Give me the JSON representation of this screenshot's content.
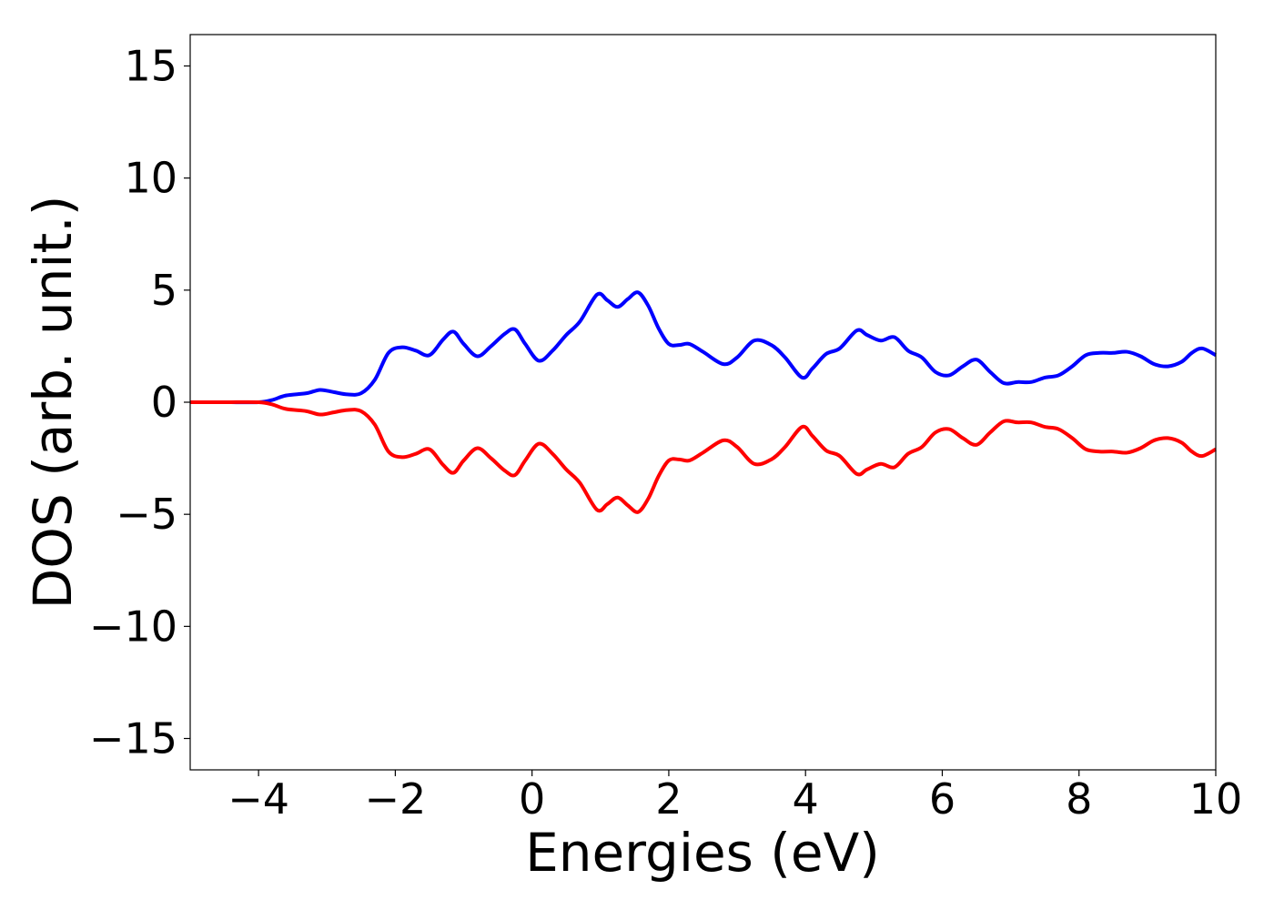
{
  "chart_data": {
    "type": "line",
    "title": "",
    "xlabel": "Energies (eV)",
    "ylabel": "DOS (arb. unit.)",
    "xlim": [
      -5,
      10
    ],
    "ylim": [
      -16.4,
      16.4
    ],
    "x_ticks": [
      -4,
      -2,
      0,
      2,
      4,
      6,
      8,
      10
    ],
    "x_tick_labels": [
      "−4",
      "−2",
      "0",
      "2",
      "4",
      "6",
      "8",
      "10"
    ],
    "y_ticks": [
      -15,
      -10,
      -5,
      0,
      5,
      10,
      15
    ],
    "y_tick_labels": [
      "−15",
      "−10",
      "−5",
      "0",
      "5",
      "10",
      "15"
    ],
    "grid": false,
    "legend": "none",
    "x": [
      -5,
      -4.5,
      -4.0,
      -3.8,
      -3.6,
      -3.3,
      -3.1,
      -2.9,
      -2.7,
      -2.5,
      -2.3,
      -2.1,
      -1.9,
      -1.7,
      -1.5,
      -1.3,
      -1.15,
      -1.0,
      -0.8,
      -0.6,
      -0.4,
      -0.25,
      -0.1,
      0.1,
      0.3,
      0.5,
      0.7,
      0.95,
      1.1,
      1.25,
      1.4,
      1.55,
      1.7,
      1.85,
      2.0,
      2.15,
      2.3,
      2.5,
      2.8,
      3.0,
      3.25,
      3.5,
      3.7,
      3.95,
      4.1,
      4.3,
      4.5,
      4.75,
      4.9,
      5.1,
      5.3,
      5.5,
      5.7,
      5.9,
      6.1,
      6.3,
      6.5,
      6.7,
      6.9,
      7.1,
      7.3,
      7.5,
      7.7,
      7.9,
      8.1,
      8.3,
      8.5,
      8.7,
      8.9,
      9.1,
      9.3,
      9.5,
      9.65,
      9.8,
      10.0
    ],
    "series": [
      {
        "color": "#0000ff",
        "values": [
          0,
          0,
          0,
          0.1,
          0.3,
          0.4,
          0.55,
          0.45,
          0.35,
          0.4,
          1.0,
          2.2,
          2.45,
          2.3,
          2.1,
          2.8,
          3.15,
          2.6,
          2.05,
          2.5,
          3.05,
          3.25,
          2.6,
          1.85,
          2.3,
          3.0,
          3.6,
          4.8,
          4.55,
          4.25,
          4.6,
          4.9,
          4.3,
          3.3,
          2.6,
          2.55,
          2.6,
          2.25,
          1.7,
          2.0,
          2.75,
          2.55,
          2.0,
          1.1,
          1.5,
          2.15,
          2.4,
          3.2,
          3.0,
          2.75,
          2.9,
          2.3,
          2.0,
          1.35,
          1.2,
          1.6,
          1.9,
          1.35,
          0.85,
          0.9,
          0.9,
          1.1,
          1.2,
          1.6,
          2.1,
          2.2,
          2.2,
          2.25,
          2.05,
          1.7,
          1.6,
          1.8,
          2.2,
          2.4,
          2.1
        ]
      },
      {
        "color": "#ff0000",
        "values": [
          0,
          0,
          0,
          -0.1,
          -0.3,
          -0.4,
          -0.55,
          -0.45,
          -0.35,
          -0.4,
          -1.0,
          -2.2,
          -2.45,
          -2.3,
          -2.1,
          -2.8,
          -3.15,
          -2.6,
          -2.05,
          -2.5,
          -3.05,
          -3.25,
          -2.6,
          -1.85,
          -2.3,
          -3.0,
          -3.6,
          -4.8,
          -4.55,
          -4.25,
          -4.6,
          -4.9,
          -4.3,
          -3.3,
          -2.6,
          -2.55,
          -2.6,
          -2.25,
          -1.7,
          -2.0,
          -2.75,
          -2.55,
          -2.0,
          -1.1,
          -1.5,
          -2.15,
          -2.4,
          -3.2,
          -3.0,
          -2.75,
          -2.9,
          -2.3,
          -2.0,
          -1.35,
          -1.2,
          -1.6,
          -1.9,
          -1.35,
          -0.85,
          -0.9,
          -0.9,
          -1.1,
          -1.2,
          -1.6,
          -2.1,
          -2.2,
          -2.2,
          -2.25,
          -2.05,
          -1.7,
          -1.6,
          -1.8,
          -2.2,
          -2.4,
          -2.1
        ]
      }
    ]
  }
}
